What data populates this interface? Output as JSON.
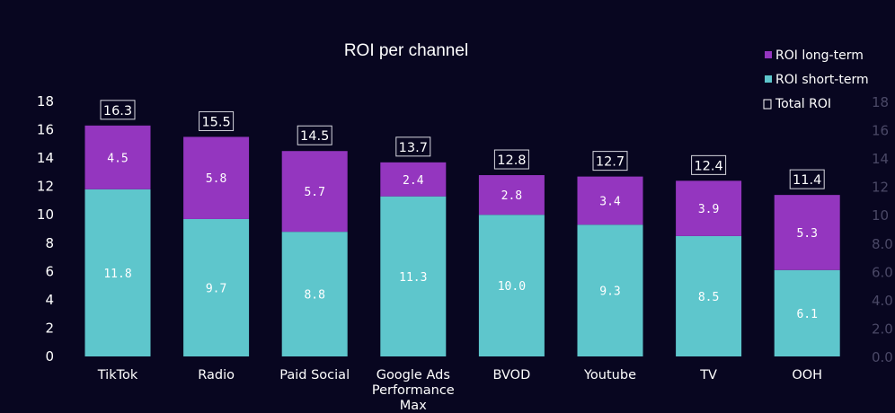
{
  "chart_data": {
    "type": "bar",
    "stacked": true,
    "title": "ROI per channel",
    "xlabel": "",
    "ylabel": "",
    "ylim": [
      0,
      18
    ],
    "yticks": [
      0,
      2,
      4,
      6,
      8,
      10,
      12,
      14,
      16,
      18
    ],
    "categories": [
      "TikTok",
      "Radio",
      "Paid Social",
      "Google Ads Performance Max",
      "BVOD",
      "Youtube",
      "TV",
      "OOH"
    ],
    "category_lines": [
      [
        "TikTok"
      ],
      [
        "Radio"
      ],
      [
        "Paid Social"
      ],
      [
        "Google Ads",
        "Performance",
        "Max"
      ],
      [
        "BVOD"
      ],
      [
        "Youtube"
      ],
      [
        "TV"
      ],
      [
        "OOH"
      ]
    ],
    "series": [
      {
        "name": "ROI short-term",
        "color": "#5ec6cc",
        "values": [
          11.8,
          9.7,
          8.8,
          11.3,
          10.0,
          9.3,
          8.5,
          6.1
        ],
        "labels": [
          "11.8",
          "9.7",
          "8.8",
          "11.3",
          "10.0",
          "9.3",
          "8.5",
          "6.1"
        ]
      },
      {
        "name": "ROI long-term",
        "color": "#9436bf",
        "values": [
          4.5,
          5.8,
          5.7,
          2.4,
          2.8,
          3.4,
          3.9,
          5.3
        ],
        "labels": [
          "4.5",
          "5.8",
          "5.7",
          "2.4",
          "2.8",
          "3.4",
          "3.9",
          "5.3"
        ]
      }
    ],
    "totals": {
      "name": "Total ROI",
      "values": [
        16.3,
        15.5,
        14.5,
        13.7,
        12.8,
        12.7,
        12.4,
        11.4
      ],
      "labels": [
        "16.3",
        "15.5",
        "14.5",
        "13.7",
        "12.8",
        "12.7",
        "12.4",
        "11.4"
      ]
    },
    "legend": {
      "placement": "top-right",
      "entries": [
        "ROI long-term",
        "ROI short-term",
        "Total ROI"
      ]
    },
    "grid": false,
    "secondary_axis_ghost_ticks": [
      "18",
      "16",
      "14",
      "12",
      "10",
      "8.0",
      "6.0",
      "4.0",
      "2.0",
      "0.0"
    ]
  }
}
